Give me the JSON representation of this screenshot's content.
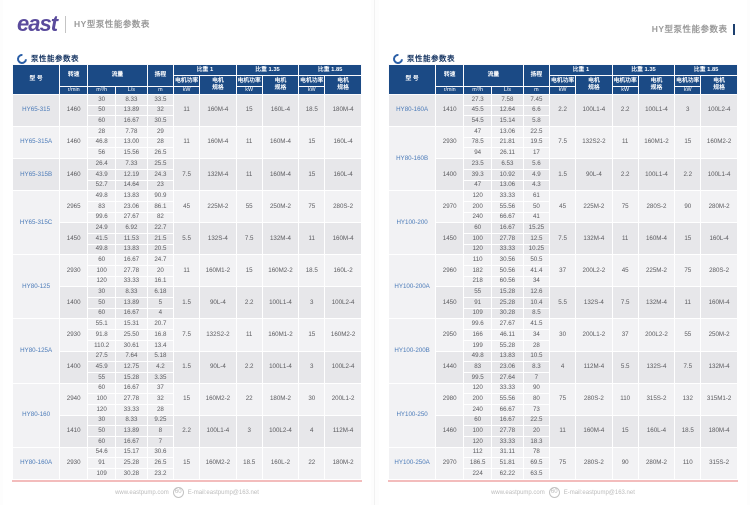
{
  "header": {
    "brand": "east",
    "doc_title": "HY型泵性能参数表"
  },
  "section_title": "泵性能参数表",
  "table_headers": {
    "model": "型 号",
    "speed": "转速",
    "speed_unit": "r/min",
    "flow": "流量",
    "flow_unit_m3h": "m³/h",
    "flow_unit_ls": "L/s",
    "head": "扬程",
    "head_unit": "m",
    "sg1": "比重 1",
    "sg135": "比重 1.35",
    "sg185": "比重 1.85",
    "power": "电机功率",
    "power_unit": "kW",
    "spec": "电机\n规格"
  },
  "footer": {
    "website": "www.eastpump.com",
    "badge": "60",
    "email": "E-mail:eastpump@163.net"
  },
  "colors": {
    "header_bg": "#1b4a85",
    "model_text": "#4a7ab8",
    "brand_purple": "#5a4b9c",
    "row_dark": "#e7e7ea",
    "row_light": "#f2f2f4",
    "bottom_rule": "#f3bcbc"
  },
  "pages": [
    {
      "side": "left",
      "groups": [
        {
          "model": "HY65-315",
          "subgroups": [
            {
              "speed": "1460",
              "rows": [
                [
                  "30",
                  "8.33",
                  "33.5"
                ],
                [
                  "50",
                  "13.89",
                  "32"
                ],
                [
                  "60",
                  "16.67",
                  "30.5"
                ]
              ],
              "motors": [
                "11",
                "160M-4",
                "15",
                "160L-4",
                "18.5",
                "180M-4"
              ]
            }
          ]
        },
        {
          "model": "HY65-315A",
          "subgroups": [
            {
              "speed": "1460",
              "rows": [
                [
                  "28",
                  "7.78",
                  "29"
                ],
                [
                  "46.8",
                  "13.00",
                  "28"
                ],
                [
                  "56",
                  "15.56",
                  "26.5"
                ]
              ],
              "motors": [
                "11",
                "160M-4",
                "11",
                "160M-4",
                "15",
                "160L-4"
              ]
            }
          ]
        },
        {
          "model": "HY65-315B",
          "subgroups": [
            {
              "speed": "1460",
              "rows": [
                [
                  "26.4",
                  "7.33",
                  "25.5"
                ],
                [
                  "43.9",
                  "12.19",
                  "24.3"
                ],
                [
                  "52.7",
                  "14.64",
                  "23"
                ]
              ],
              "motors": [
                "7.5",
                "132M-4",
                "11",
                "160M-4",
                "15",
                "160L-4"
              ]
            }
          ]
        },
        {
          "model": "HY65-315C",
          "subgroups": [
            {
              "speed": "2965",
              "rows": [
                [
                  "49.8",
                  "13.83",
                  "90.9"
                ],
                [
                  "83",
                  "23.06",
                  "86.1"
                ],
                [
                  "99.6",
                  "27.67",
                  "82"
                ]
              ],
              "motors": [
                "45",
                "225M-2",
                "55",
                "250M-2",
                "75",
                "280S-2"
              ]
            },
            {
              "speed": "1450",
              "rows": [
                [
                  "24.9",
                  "6.92",
                  "22.7"
                ],
                [
                  "41.5",
                  "11.53",
                  "21.5"
                ],
                [
                  "49.8",
                  "13.83",
                  "20.5"
                ]
              ],
              "motors": [
                "5.5",
                "132S-4",
                "7.5",
                "132M-4",
                "11",
                "160M-4"
              ]
            }
          ]
        },
        {
          "model": "HY80-125",
          "subgroups": [
            {
              "speed": "2930",
              "rows": [
                [
                  "60",
                  "16.67",
                  "24.7"
                ],
                [
                  "100",
                  "27.78",
                  "20"
                ],
                [
                  "120",
                  "33.33",
                  "16.1"
                ]
              ],
              "motors": [
                "11",
                "160M1-2",
                "15",
                "160M2-2",
                "18.5",
                "160L-2"
              ]
            },
            {
              "speed": "1400",
              "rows": [
                [
                  "30",
                  "8.33",
                  "6.18"
                ],
                [
                  "50",
                  "13.89",
                  "5"
                ],
                [
                  "60",
                  "16.67",
                  "4"
                ]
              ],
              "motors": [
                "1.5",
                "90L-4",
                "2.2",
                "100L1-4",
                "3",
                "100L2-4"
              ]
            }
          ]
        },
        {
          "model": "HY80-125A",
          "subgroups": [
            {
              "speed": "2930",
              "rows": [
                [
                  "55.1",
                  "15.31",
                  "20.7"
                ],
                [
                  "91.8",
                  "25.50",
                  "16.8"
                ],
                [
                  "110.2",
                  "30.61",
                  "13.4"
                ]
              ],
              "motors": [
                "7.5",
                "132S2-2",
                "11",
                "160M1-2",
                "15",
                "160M2-2"
              ]
            },
            {
              "speed": "1400",
              "rows": [
                [
                  "27.5",
                  "7.64",
                  "5.18"
                ],
                [
                  "45.9",
                  "12.75",
                  "4.2"
                ],
                [
                  "55",
                  "15.28",
                  "3.35"
                ]
              ],
              "motors": [
                "1.5",
                "90L-4",
                "2.2",
                "100L1-4",
                "3",
                "100L2-4"
              ]
            }
          ]
        },
        {
          "model": "HY80-160",
          "subgroups": [
            {
              "speed": "2940",
              "rows": [
                [
                  "60",
                  "16.67",
                  "37"
                ],
                [
                  "100",
                  "27.78",
                  "32"
                ],
                [
                  "120",
                  "33.33",
                  "28"
                ]
              ],
              "motors": [
                "15",
                "160M2-2",
                "22",
                "180M-2",
                "30",
                "200L1-2"
              ]
            },
            {
              "speed": "1410",
              "rows": [
                [
                  "30",
                  "8.33",
                  "9.25"
                ],
                [
                  "50",
                  "13.89",
                  "8"
                ],
                [
                  "60",
                  "16.67",
                  "7"
                ]
              ],
              "motors": [
                "2.2",
                "100L1-4",
                "3",
                "100L2-4",
                "4",
                "112M-4"
              ]
            }
          ]
        },
        {
          "model": "HY80-160A",
          "subgroups": [
            {
              "speed": "2930",
              "rows": [
                [
                  "54.6",
                  "15.17",
                  "30.6"
                ],
                [
                  "91",
                  "25.28",
                  "26.5"
                ],
                [
                  "109",
                  "30.28",
                  "23.2"
                ]
              ],
              "motors": [
                "15",
                "160M2-2",
                "18.5",
                "160L-2",
                "22",
                "180M-2"
              ]
            }
          ]
        }
      ]
    },
    {
      "side": "right",
      "groups": [
        {
          "model": "HY80-160A",
          "subgroups": [
            {
              "speed": "1410",
              "rows": [
                [
                  "27.3",
                  "7.58",
                  "7.45"
                ],
                [
                  "45.5",
                  "12.64",
                  "6.6"
                ],
                [
                  "54.5",
                  "15.14",
                  "5.8"
                ]
              ],
              "motors": [
                "2.2",
                "100L1-4",
                "2.2",
                "100L1-4",
                "3",
                "100L2-4"
              ]
            }
          ]
        },
        {
          "model": "HY80-160B",
          "subgroups": [
            {
              "speed": "2930",
              "rows": [
                [
                  "47",
                  "13.06",
                  "22.5"
                ],
                [
                  "78.5",
                  "21.81",
                  "19.5"
                ],
                [
                  "94",
                  "26.11",
                  "17"
                ]
              ],
              "motors": [
                "7.5",
                "132S2-2",
                "11",
                "160M1-2",
                "15",
                "160M2-2"
              ]
            },
            {
              "speed": "1400",
              "rows": [
                [
                  "23.5",
                  "6.53",
                  "5.6"
                ],
                [
                  "39.3",
                  "10.92",
                  "4.9"
                ],
                [
                  "47",
                  "13.06",
                  "4.3"
                ]
              ],
              "motors": [
                "1.5",
                "90L-4",
                "2.2",
                "100L1-4",
                "2.2",
                "100L1-4"
              ]
            }
          ]
        },
        {
          "model": "HY100-200",
          "subgroups": [
            {
              "speed": "2970",
              "rows": [
                [
                  "120",
                  "33.33",
                  "61"
                ],
                [
                  "200",
                  "55.56",
                  "50"
                ],
                [
                  "240",
                  "66.67",
                  "41"
                ]
              ],
              "motors": [
                "45",
                "225M-2",
                "75",
                "280S-2",
                "90",
                "280M-2"
              ]
            },
            {
              "speed": "1450",
              "rows": [
                [
                  "60",
                  "16.67",
                  "15.25"
                ],
                [
                  "100",
                  "27.78",
                  "12.5"
                ],
                [
                  "120",
                  "33.33",
                  "10.25"
                ]
              ],
              "motors": [
                "7.5",
                "132M-4",
                "11",
                "160M-4",
                "15",
                "160L-4"
              ]
            }
          ]
        },
        {
          "model": "HY100-200A",
          "subgroups": [
            {
              "speed": "2960",
              "rows": [
                [
                  "110",
                  "30.56",
                  "50.5"
                ],
                [
                  "182",
                  "50.56",
                  "41.4"
                ],
                [
                  "218",
                  "60.56",
                  "34"
                ]
              ],
              "motors": [
                "37",
                "200L2-2",
                "45",
                "225M-2",
                "75",
                "280S-2"
              ]
            },
            {
              "speed": "1450",
              "rows": [
                [
                  "55",
                  "15.28",
                  "12.6"
                ],
                [
                  "91",
                  "25.28",
                  "10.4"
                ],
                [
                  "109",
                  "30.28",
                  "8.5"
                ]
              ],
              "motors": [
                "5.5",
                "132S-4",
                "7.5",
                "132M-4",
                "11",
                "160M-4"
              ]
            }
          ]
        },
        {
          "model": "HY100-200B",
          "subgroups": [
            {
              "speed": "2950",
              "rows": [
                [
                  "99.6",
                  "27.67",
                  "41.5"
                ],
                [
                  "166",
                  "46.11",
                  "34"
                ],
                [
                  "199",
                  "55.28",
                  "28"
                ]
              ],
              "motors": [
                "30",
                "200L1-2",
                "37",
                "200L2-2",
                "55",
                "250M-2"
              ]
            },
            {
              "speed": "1440",
              "rows": [
                [
                  "49.8",
                  "13.83",
                  "10.5"
                ],
                [
                  "83",
                  "23.06",
                  "8.3"
                ],
                [
                  "99.5",
                  "27.64",
                  "7"
                ]
              ],
              "motors": [
                "4",
                "112M-4",
                "5.5",
                "132S-4",
                "7.5",
                "132M-4"
              ]
            }
          ]
        },
        {
          "model": "HY100-250",
          "subgroups": [
            {
              "speed": "2980",
              "rows": [
                [
                  "120",
                  "33.33",
                  "90"
                ],
                [
                  "200",
                  "55.56",
                  "80"
                ],
                [
                  "240",
                  "66.67",
                  "73"
                ]
              ],
              "motors": [
                "75",
                "280S-2",
                "110",
                "315S-2",
                "132",
                "315M1-2"
              ]
            },
            {
              "speed": "1460",
              "rows": [
                [
                  "60",
                  "16.67",
                  "22.5"
                ],
                [
                  "100",
                  "27.78",
                  "20"
                ],
                [
                  "120",
                  "33.33",
                  "18.3"
                ]
              ],
              "motors": [
                "11",
                "160M-4",
                "15",
                "160L-4",
                "18.5",
                "180M-4"
              ]
            }
          ]
        },
        {
          "model": "HY100-250A",
          "subgroups": [
            {
              "speed": "2970",
              "rows": [
                [
                  "112",
                  "31.11",
                  "78"
                ],
                [
                  "186.5",
                  "51.81",
                  "69.5"
                ],
                [
                  "224",
                  "62.22",
                  "63.5"
                ]
              ],
              "motors": [
                "75",
                "280S-2",
                "90",
                "280M-2",
                "110",
                "315S-2"
              ]
            }
          ]
        }
      ]
    }
  ]
}
